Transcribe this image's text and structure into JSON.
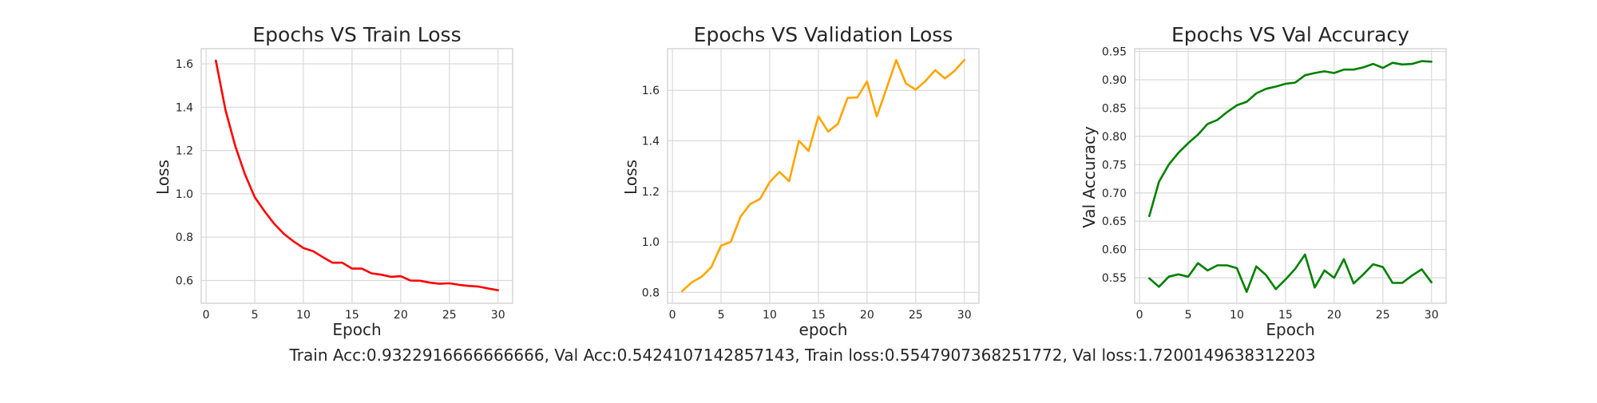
{
  "chart_data": [
    {
      "type": "line",
      "title": "Epochs VS Train Loss",
      "xlabel": "Epoch",
      "ylabel": "Loss",
      "xlim": [
        -0.5,
        31.5
      ],
      "ylim": [
        0.495,
        1.67
      ],
      "xticks": [
        0,
        5,
        10,
        15,
        20,
        25,
        30
      ],
      "yticks": [
        0.6,
        0.8,
        1.0,
        1.2,
        1.4,
        1.6
      ],
      "ytick_decimals": 1,
      "grid": true,
      "series": [
        {
          "color": "#ff0000",
          "x": [
            1,
            2,
            3,
            4,
            5,
            6,
            7,
            8,
            9,
            10,
            11,
            12,
            13,
            14,
            15,
            16,
            17,
            18,
            19,
            20,
            21,
            22,
            23,
            24,
            25,
            26,
            27,
            28,
            29,
            30
          ],
          "y": [
            1.615,
            1.385,
            1.22,
            1.09,
            0.985,
            0.92,
            0.862,
            0.815,
            0.78,
            0.75,
            0.735,
            0.708,
            0.682,
            0.682,
            0.655,
            0.655,
            0.633,
            0.627,
            0.617,
            0.62,
            0.6,
            0.599,
            0.59,
            0.585,
            0.587,
            0.58,
            0.575,
            0.572,
            0.563,
            0.555
          ]
        }
      ]
    },
    {
      "type": "line",
      "title": "Epochs VS Validation Loss",
      "xlabel": "epoch",
      "ylabel": "Loss",
      "xlim": [
        -0.5,
        31.5
      ],
      "ylim": [
        0.757,
        1.765
      ],
      "xticks": [
        0,
        5,
        10,
        15,
        20,
        25,
        30
      ],
      "yticks": [
        0.8,
        1.0,
        1.2,
        1.4,
        1.6
      ],
      "ytick_decimals": 1,
      "grid": true,
      "series": [
        {
          "color": "#ffa500",
          "x": [
            1,
            2,
            3,
            4,
            5,
            6,
            7,
            8,
            9,
            10,
            11,
            12,
            13,
            14,
            15,
            16,
            17,
            18,
            19,
            20,
            21,
            22,
            23,
            24,
            25,
            26,
            27,
            28,
            29,
            30
          ],
          "y": [
            0.805,
            0.84,
            0.862,
            0.9,
            0.985,
            1.0,
            1.1,
            1.15,
            1.17,
            1.237,
            1.277,
            1.24,
            1.4,
            1.36,
            1.497,
            1.437,
            1.467,
            1.57,
            1.572,
            1.635,
            1.497,
            1.607,
            1.72,
            1.627,
            1.603,
            1.637,
            1.68,
            1.647,
            1.677,
            1.72
          ]
        }
      ]
    },
    {
      "type": "line",
      "title": "Epochs VS Val Accuracy",
      "xlabel": "Epoch",
      "ylabel": "Val Accuracy",
      "xlim": [
        -0.5,
        31.5
      ],
      "ylim": [
        0.505,
        0.955
      ],
      "xticks": [
        0,
        5,
        10,
        15,
        20,
        25,
        30
      ],
      "yticks": [
        0.55,
        0.6,
        0.65,
        0.7,
        0.75,
        0.8,
        0.85,
        0.9,
        0.95
      ],
      "ytick_decimals": 2,
      "grid": true,
      "series": [
        {
          "color": "#008000",
          "x": [
            1,
            2,
            3,
            4,
            5,
            6,
            7,
            8,
            9,
            10,
            11,
            12,
            13,
            14,
            15,
            16,
            17,
            18,
            19,
            20,
            21,
            22,
            23,
            24,
            25,
            26,
            27,
            28,
            29,
            30
          ],
          "y": [
            0.659,
            0.72,
            0.75,
            0.771,
            0.788,
            0.803,
            0.822,
            0.829,
            0.843,
            0.855,
            0.861,
            0.876,
            0.884,
            0.888,
            0.893,
            0.895,
            0.908,
            0.912,
            0.915,
            0.912,
            0.918,
            0.918,
            0.922,
            0.928,
            0.921,
            0.93,
            0.927,
            0.928,
            0.933,
            0.932
          ]
        },
        {
          "color": "#008000",
          "x": [
            1,
            2,
            3,
            4,
            5,
            6,
            7,
            8,
            9,
            10,
            11,
            12,
            13,
            14,
            15,
            16,
            17,
            18,
            19,
            20,
            21,
            22,
            23,
            24,
            25,
            26,
            27,
            28,
            29,
            30
          ],
          "y": [
            0.549,
            0.534,
            0.552,
            0.556,
            0.552,
            0.576,
            0.563,
            0.572,
            0.572,
            0.567,
            0.525,
            0.57,
            0.555,
            0.53,
            0.547,
            0.566,
            0.591,
            0.533,
            0.563,
            0.55,
            0.583,
            0.54,
            0.556,
            0.574,
            0.569,
            0.541,
            0.541,
            0.554,
            0.565,
            0.542
          ]
        }
      ]
    }
  ],
  "footer": {
    "summary": "Train Acc:0.9322916666666666, Val Acc:0.5424107142857143, Train loss:0.5547907368251772, Val loss:1.7200149638312203"
  }
}
